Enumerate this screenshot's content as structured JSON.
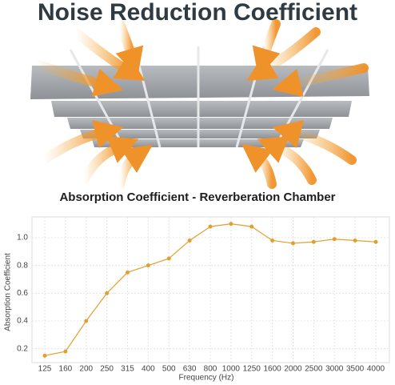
{
  "title": "Noise Reduction Coefficient",
  "chart_data": {
    "type": "line",
    "title": "Absorption Coefficient - Reverberation Chamber",
    "x_label": "Frequency (Hz)",
    "y_label": "Absorption Coefficient",
    "categories": [
      "125",
      "160",
      "200",
      "250",
      "315",
      "400",
      "500",
      "630",
      "800",
      "1000",
      "1250",
      "1600",
      "2000",
      "2500",
      "3000",
      "3500",
      "4000"
    ],
    "values": [
      0.15,
      0.18,
      0.4,
      0.6,
      0.75,
      0.8,
      0.85,
      0.98,
      1.08,
      1.1,
      1.08,
      0.98,
      0.96,
      0.97,
      0.99,
      0.98,
      0.97
    ],
    "color": "#e0a030",
    "ylim": [
      0.1,
      1.15
    ],
    "yticks": [
      0.2,
      0.4,
      0.6,
      0.8,
      {
        "value": 1,
        "label": "1.0"
      }
    ],
    "grid": true
  }
}
